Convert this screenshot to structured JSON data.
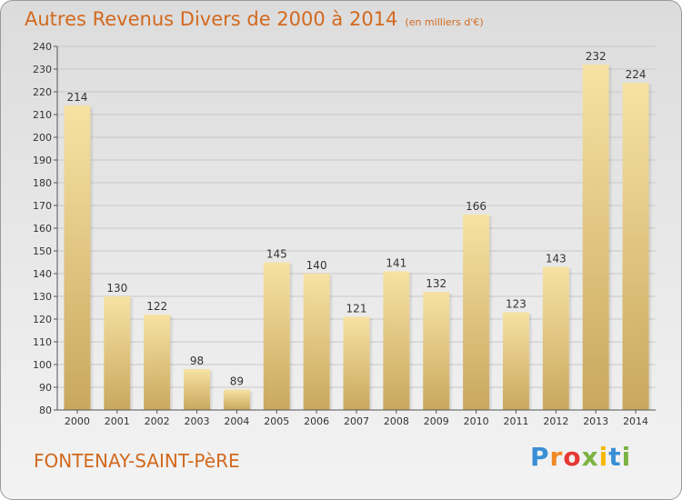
{
  "header": {
    "title": "Autres Revenus Divers de 2000 à 2014",
    "subtitle": "(en milliers d'€)"
  },
  "footer": {
    "commune": "FONTENAY-SAINT-PèRE",
    "logo_text": "Proxiti"
  },
  "colors": {
    "title": "#d2691e",
    "bar_top": "#f5dc9a",
    "bar_bottom": "#c9a85e",
    "axis": "#555555",
    "grid": "#c8c8c8"
  },
  "chart_data": {
    "type": "bar",
    "title": "Autres Revenus Divers de 2000 à 2014",
    "subtitle": "(en milliers d'€)",
    "xlabel": "",
    "ylabel": "",
    "categories": [
      "2000",
      "2001",
      "2002",
      "2003",
      "2004",
      "2005",
      "2006",
      "2007",
      "2008",
      "2009",
      "2010",
      "2011",
      "2012",
      "2013",
      "2014"
    ],
    "values": [
      214,
      130,
      122,
      98,
      89,
      145,
      140,
      121,
      141,
      132,
      166,
      123,
      143,
      232,
      224
    ],
    "ylim": [
      80,
      240
    ],
    "yticks": [
      80,
      90,
      100,
      110,
      120,
      130,
      140,
      150,
      160,
      170,
      180,
      190,
      200,
      210,
      220,
      230,
      240
    ],
    "grid": true,
    "legend": "none"
  }
}
